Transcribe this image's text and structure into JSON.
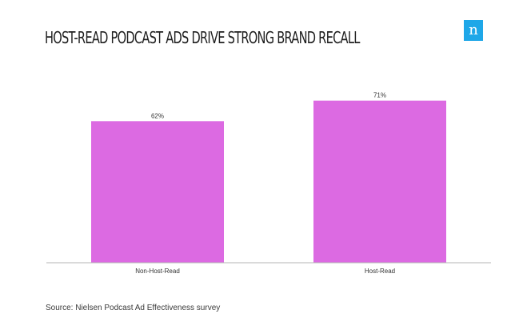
{
  "header": {
    "title": "HOST-READ PODCAST ADS DRIVE STRONG BRAND RECALL",
    "logo_letter": "n"
  },
  "footer": {
    "source": "Source: Nielsen Podcast Ad Effectiveness survey"
  },
  "colors": {
    "bar": "#dc6ae2",
    "axis": "#b5b5b5",
    "logo": "#1ea7e8"
  },
  "chart_data": {
    "type": "bar",
    "categories": [
      "Non-Host-Read",
      "Host-Read"
    ],
    "values": [
      62,
      71
    ],
    "value_labels": [
      "62%",
      "71%"
    ],
    "title": "HOST-READ PODCAST ADS DRIVE STRONG BRAND RECALL",
    "xlabel": "",
    "ylabel": "",
    "ylim": [
      0,
      80
    ],
    "grid": false,
    "legend": "none"
  }
}
